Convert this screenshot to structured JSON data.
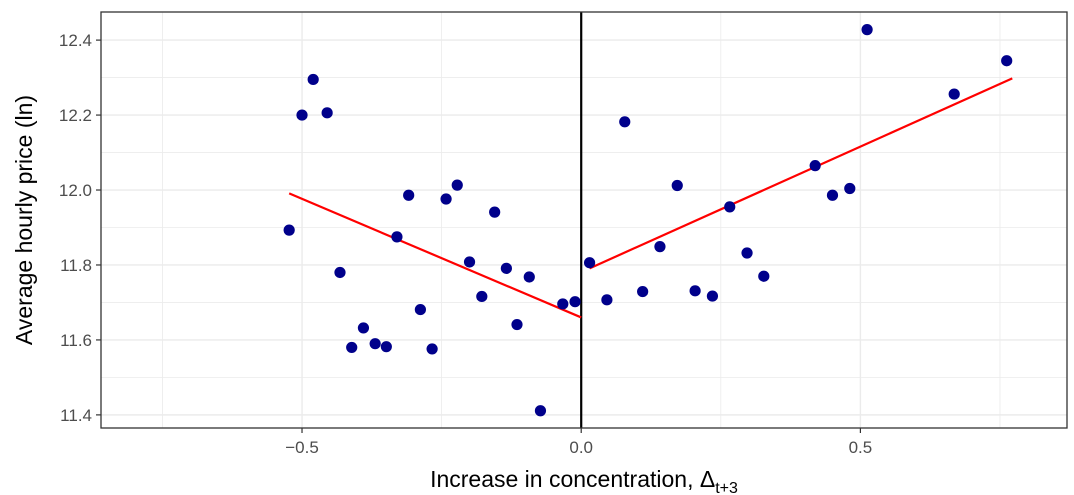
{
  "chart_data": {
    "type": "scatter",
    "xlabel": "Increase in concentration, Δ",
    "xlabel_subscript": "t+3",
    "ylabel": "Average hourly price (ln)",
    "xlim": [
      -0.86,
      0.87
    ],
    "ylim": [
      11.365,
      12.475
    ],
    "x_ticks": [
      -0.5,
      0.0,
      0.5
    ],
    "x_tick_labels": [
      "−0.5",
      "0.0",
      "0.5"
    ],
    "y_ticks": [
      11.4,
      11.6,
      11.8,
      12.0,
      12.2,
      12.4
    ],
    "y_tick_labels": [
      "11.4",
      "11.6",
      "11.8",
      "12.0",
      "12.2",
      "12.4"
    ],
    "grid": true,
    "cutoff_x": 0.0,
    "point_color": "#00008b",
    "fit_color": "#ff0000",
    "points": [
      {
        "x": -0.523,
        "y": 11.893
      },
      {
        "x": -0.5,
        "y": 12.2
      },
      {
        "x": -0.48,
        "y": 12.295
      },
      {
        "x": -0.455,
        "y": 12.206
      },
      {
        "x": -0.432,
        "y": 11.78
      },
      {
        "x": -0.411,
        "y": 11.58
      },
      {
        "x": -0.39,
        "y": 11.632
      },
      {
        "x": -0.369,
        "y": 11.59
      },
      {
        "x": -0.349,
        "y": 11.582
      },
      {
        "x": -0.33,
        "y": 11.875
      },
      {
        "x": -0.309,
        "y": 11.986
      },
      {
        "x": -0.288,
        "y": 11.681
      },
      {
        "x": -0.267,
        "y": 11.576
      },
      {
        "x": -0.242,
        "y": 11.976
      },
      {
        "x": -0.222,
        "y": 12.013
      },
      {
        "x": -0.2,
        "y": 11.808
      },
      {
        "x": -0.178,
        "y": 11.716
      },
      {
        "x": -0.155,
        "y": 11.941
      },
      {
        "x": -0.134,
        "y": 11.791
      },
      {
        "x": -0.115,
        "y": 11.641
      },
      {
        "x": -0.093,
        "y": 11.768
      },
      {
        "x": -0.073,
        "y": 11.411
      },
      {
        "x": -0.033,
        "y": 11.696
      },
      {
        "x": -0.011,
        "y": 11.702
      },
      {
        "x": 0.015,
        "y": 11.806
      },
      {
        "x": 0.046,
        "y": 11.707
      },
      {
        "x": 0.078,
        "y": 12.182
      },
      {
        "x": 0.11,
        "y": 11.729
      },
      {
        "x": 0.141,
        "y": 11.849
      },
      {
        "x": 0.172,
        "y": 12.012
      },
      {
        "x": 0.204,
        "y": 11.731
      },
      {
        "x": 0.235,
        "y": 11.717
      },
      {
        "x": 0.266,
        "y": 11.955
      },
      {
        "x": 0.297,
        "y": 11.832
      },
      {
        "x": 0.327,
        "y": 11.77
      },
      {
        "x": 0.419,
        "y": 12.065
      },
      {
        "x": 0.45,
        "y": 11.986
      },
      {
        "x": 0.481,
        "y": 12.004
      },
      {
        "x": 0.512,
        "y": 12.428
      },
      {
        "x": 0.668,
        "y": 12.256
      },
      {
        "x": 0.762,
        "y": 12.345
      }
    ],
    "fit_lines": [
      {
        "name": "left-fit",
        "x": [
          -0.523,
          0.0
        ],
        "y": [
          11.991,
          11.66
        ]
      },
      {
        "name": "right-fit",
        "x": [
          0.015,
          0.772
        ],
        "y": [
          11.791,
          12.298
        ]
      }
    ]
  }
}
